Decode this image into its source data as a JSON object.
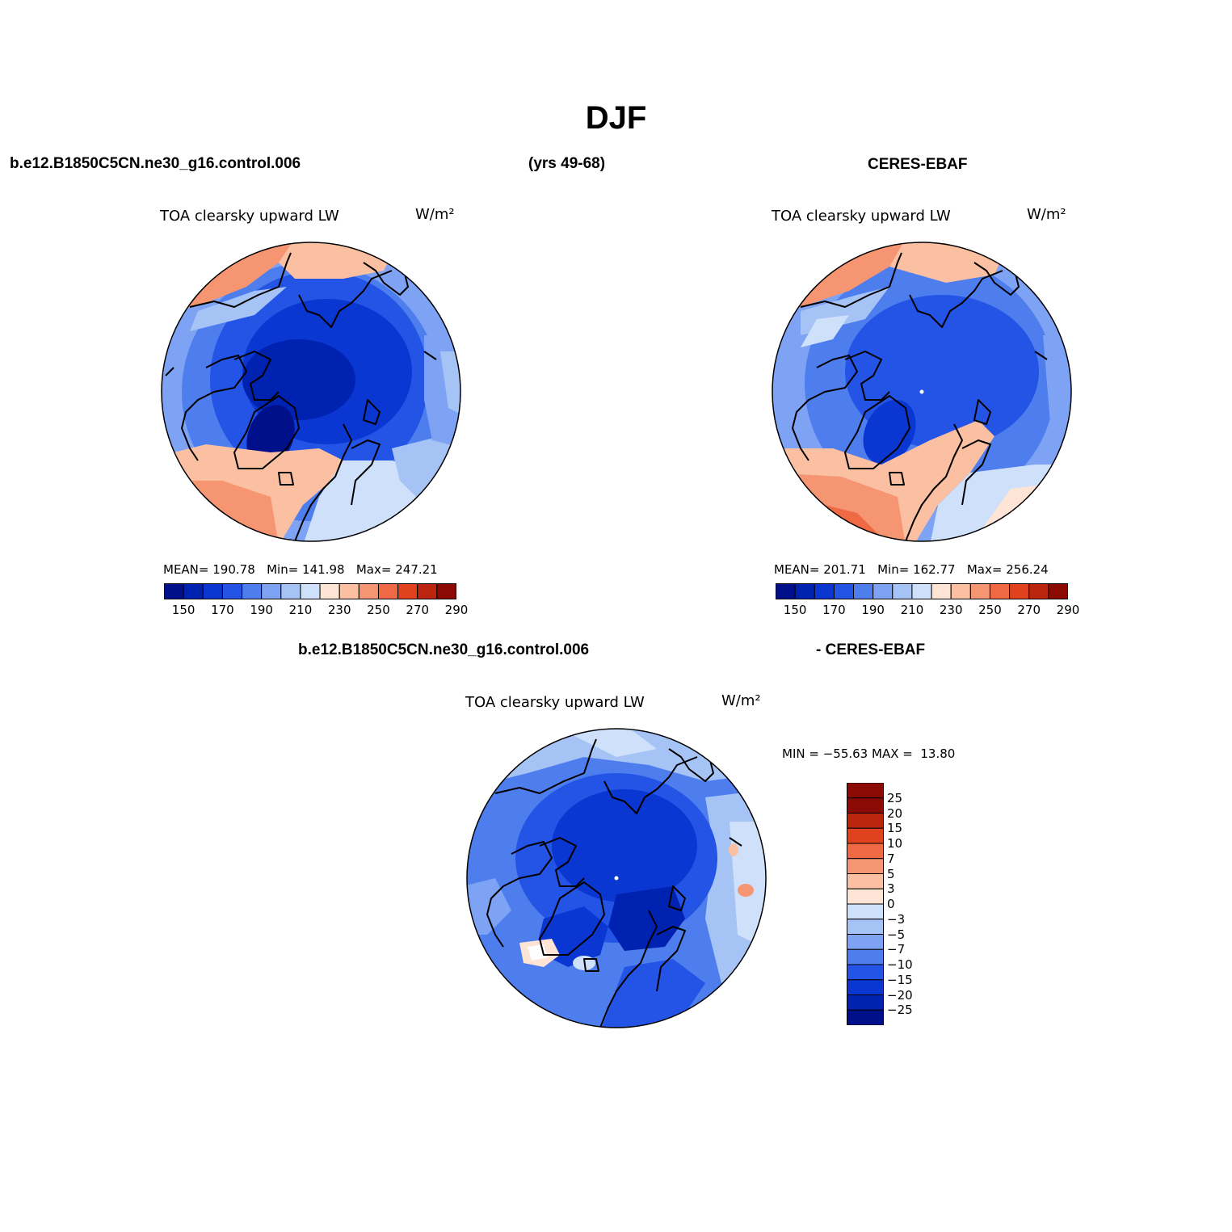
{
  "title": "DJF",
  "top_left_case": "b.e12.B1850C5CN.ne30_g16.control.006",
  "years": "(yrs 49-68)",
  "top_right_case": "CERES-EBAF",
  "diff_case_a": "b.e12.B1850C5CN.ne30_g16.control.006",
  "diff_case_b": "- CERES-EBAF",
  "variable": "TOA clearsky upward LW",
  "units": "W/m²",
  "panel_model": {
    "mean_label": "MEAN=",
    "mean": "190.78",
    "min_label": "Min=",
    "min": "141.98",
    "max_label": "Max=",
    "max": "247.21"
  },
  "panel_obs": {
    "mean_label": "MEAN=",
    "mean": "201.71",
    "min_label": "Min=",
    "min": "162.77",
    "max_label": "Max=",
    "max": "256.24"
  },
  "panel_diff": {
    "min_label": "MIN =",
    "min": "−55.63",
    "max_label": "MAX =",
    "max": "13.80"
  },
  "abs_colorbar": {
    "colors": [
      "#000f8a",
      "#0022b0",
      "#0a36d2",
      "#2454e6",
      "#4e7eee",
      "#7ea3f4",
      "#a6c3f6",
      "#cfe0fb",
      "#fde4d4",
      "#fbbfa2",
      "#f59572",
      "#ef6a44",
      "#e0421d",
      "#bd260e",
      "#8c0a04"
    ],
    "labels": [
      "150",
      "170",
      "190",
      "210",
      "230",
      "250",
      "270",
      "290"
    ]
  },
  "diff_colorbar": {
    "colors": [
      "#8c0a04",
      "#bd260e",
      "#e0421d",
      "#ef6a44",
      "#f59572",
      "#fbbfa2",
      "#fde4d4",
      "#cfe0fb",
      "#a6c3f6",
      "#7ea3f4",
      "#4e7eee",
      "#2454e6",
      "#0a36d2",
      "#0022b0",
      "#000f8a"
    ],
    "labels": [
      "25",
      "20",
      "15",
      "10",
      "7",
      "5",
      "3",
      "0",
      "−3",
      "−5",
      "−7",
      "−10",
      "−15",
      "−20",
      "−25"
    ]
  }
}
